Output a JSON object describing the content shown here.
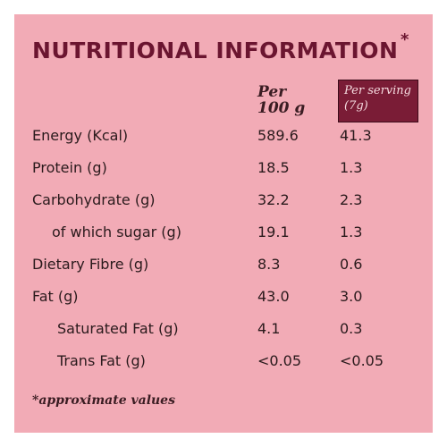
{
  "title": "NUTRITIONAL INFORMATION",
  "title_mark": "*",
  "headers": {
    "per100_line1": "Per",
    "per100_line2": "100 g",
    "serving_line1": "Per serving",
    "serving_line2": "(7g)"
  },
  "rows": [
    {
      "label": "Energy (Kcal)",
      "per100": "589.6",
      "per_serving": "41.3"
    },
    {
      "label": "Protein (g)",
      "per100": "18.5",
      "per_serving": "1.3"
    },
    {
      "label": "Carbohydrate (g)",
      "per100": "32.2",
      "per_serving": "2.3"
    },
    {
      "label": "of which sugar (g)",
      "per100": "19.1",
      "per_serving": "1.3"
    },
    {
      "label": "Dietary Fibre (g)",
      "per100": "8.3",
      "per_serving": "0.6"
    },
    {
      "label": "Fat (g)",
      "per100": "43.0",
      "per_serving": "3.0"
    },
    {
      "label": "Saturated Fat (g)",
      "per100": "4.1",
      "per_serving": "0.3"
    },
    {
      "label": "Trans Fat (g)",
      "per100": "<0.05",
      "per_serving": "<0.05"
    }
  ],
  "footnote": "*approximate values",
  "colors": {
    "background": "#f2abb6",
    "title": "#6b1530",
    "header_box": "#7a1c36",
    "text": "#2a1a1c"
  }
}
